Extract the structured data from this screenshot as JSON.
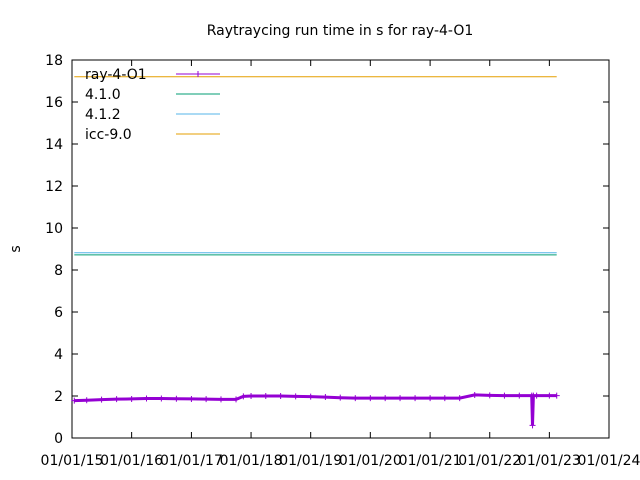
{
  "chart_data": {
    "type": "line",
    "title": "Raytraycing run time in s for ray-4-O1",
    "xlabel": "",
    "ylabel": "s",
    "ylim": [
      0,
      18
    ],
    "xlim": [
      "2015-01-01",
      "2024-01-01"
    ],
    "yticks": [
      0,
      2,
      4,
      6,
      8,
      10,
      12,
      14,
      16,
      18
    ],
    "xticks": [
      {
        "date": "2015-01-01",
        "label": "01/01/15"
      },
      {
        "date": "2016-01-01",
        "label": "01/01/16"
      },
      {
        "date": "2017-01-01",
        "label": "01/01/17"
      },
      {
        "date": "2018-01-01",
        "label": "01/01/18"
      },
      {
        "date": "2019-01-01",
        "label": "01/01/19"
      },
      {
        "date": "2020-01-01",
        "label": "01/01/20"
      },
      {
        "date": "2021-01-01",
        "label": "01/01/21"
      },
      {
        "date": "2022-01-01",
        "label": "01/01/22"
      },
      {
        "date": "2023-01-01",
        "label": "01/01/23"
      },
      {
        "date": "2024-01-01",
        "label": "01/01/24"
      }
    ],
    "legend_position": "top-left",
    "grid": false,
    "series": [
      {
        "name": "ray-4-O1",
        "color": "#9400d3",
        "style": "points-with-line",
        "x": [
          "2015-01-15",
          "2015-04-01",
          "2015-07-01",
          "2015-10-01",
          "2016-01-01",
          "2016-04-01",
          "2016-07-01",
          "2016-10-01",
          "2017-01-01",
          "2017-04-01",
          "2017-07-01",
          "2017-10-01",
          "2017-11-15",
          "2018-01-01",
          "2018-04-01",
          "2018-07-01",
          "2018-10-01",
          "2019-01-01",
          "2019-04-01",
          "2019-07-01",
          "2019-10-01",
          "2020-01-01",
          "2020-04-01",
          "2020-07-01",
          "2020-10-01",
          "2021-01-01",
          "2021-04-01",
          "2021-07-01",
          "2021-10-01",
          "2022-01-01",
          "2022-04-01",
          "2022-07-01",
          "2022-09-15",
          "2022-09-20",
          "2022-09-25",
          "2022-10-15",
          "2023-01-01",
          "2023-02-15"
        ],
        "y": [
          1.78,
          1.8,
          1.83,
          1.85,
          1.86,
          1.88,
          1.88,
          1.87,
          1.86,
          1.85,
          1.84,
          1.84,
          1.98,
          2.0,
          2.0,
          2.0,
          1.98,
          1.97,
          1.95,
          1.92,
          1.9,
          1.9,
          1.9,
          1.9,
          1.9,
          1.9,
          1.9,
          1.9,
          2.05,
          2.03,
          2.02,
          2.02,
          2.02,
          0.6,
          2.02,
          2.02,
          2.02,
          2.02
        ]
      },
      {
        "name": "4.1.0",
        "color": "#009e73",
        "style": "line",
        "x": [
          "2015-01-15",
          "2023-02-15"
        ],
        "y": [
          8.72,
          8.72
        ]
      },
      {
        "name": "4.1.2",
        "color": "#56b4e9",
        "style": "line",
        "x": [
          "2015-01-15",
          "2023-02-15"
        ],
        "y": [
          8.82,
          8.82
        ]
      },
      {
        "name": "icc-9.0",
        "color": "#e69f00",
        "style": "line",
        "x": [
          "2015-01-15",
          "2023-02-15"
        ],
        "y": [
          17.2,
          17.2
        ]
      }
    ]
  }
}
